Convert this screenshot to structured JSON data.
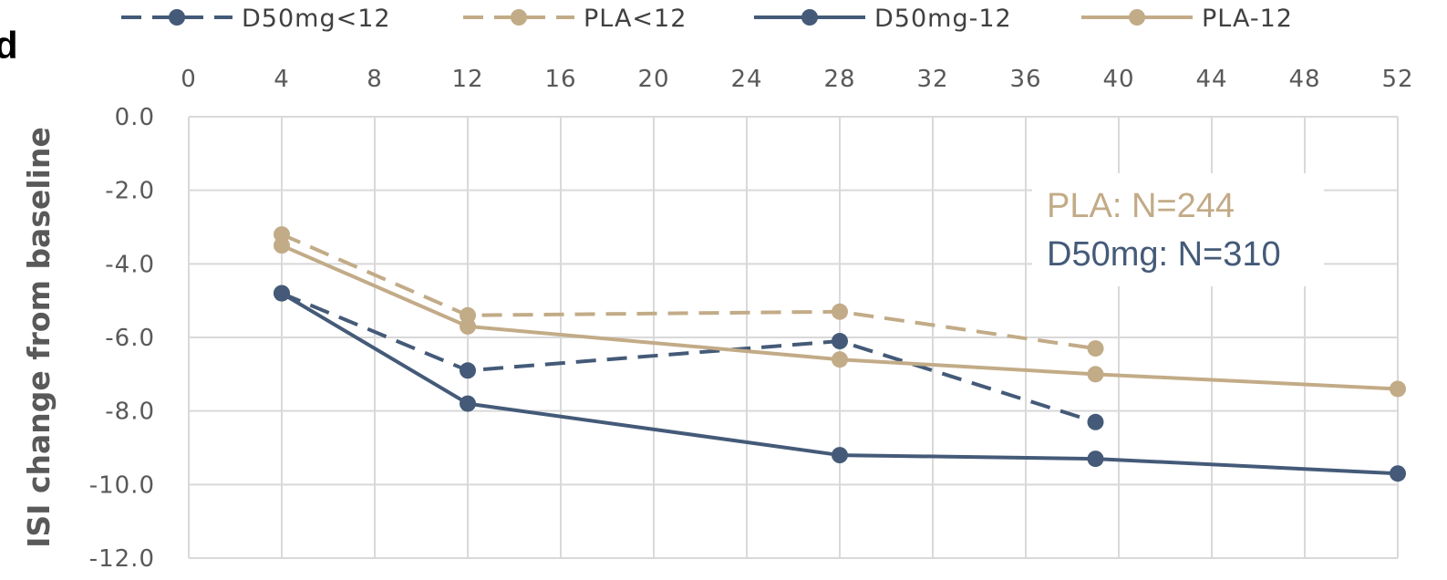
{
  "panel_letter": "d",
  "annotations": [
    {
      "text": "PLA: N=244",
      "color": "#c2ab87"
    },
    {
      "text": "D50mg: N=310",
      "color": "#445a78"
    }
  ],
  "colors": {
    "d50": "#445a78",
    "pla": "#c2ab87",
    "grid": "#d9d9d9"
  },
  "chart_data": {
    "type": "line",
    "title": "",
    "xlabel": "",
    "ylabel": "ISI change from baseline",
    "x_ticks": [
      0,
      4,
      8,
      12,
      16,
      20,
      24,
      28,
      32,
      36,
      40,
      44,
      48,
      52
    ],
    "x_tick_labels": [
      "0",
      "4",
      "8",
      "12",
      "16",
      "20",
      "24",
      "28",
      "32",
      "36",
      "40",
      "44",
      "48",
      "52"
    ],
    "xlim": [
      0,
      52
    ],
    "x_axis_position": "top",
    "y_ticks": [
      0,
      -2,
      -4,
      -6,
      -8,
      -10,
      -12
    ],
    "y_tick_labels": [
      "0.0",
      "-2.0",
      "-4.0",
      "-6.0",
      "-8.0",
      "-10.0",
      "-12.0"
    ],
    "ylim": [
      -12,
      0
    ],
    "grid": true,
    "legend_position": "top",
    "series": [
      {
        "name": "D50mg<12",
        "color": "#445a78",
        "dash": true,
        "x": [
          4,
          12,
          28,
          39
        ],
        "y": [
          -4.8,
          -6.9,
          -6.1,
          -8.3
        ]
      },
      {
        "name": "PLA<12",
        "color": "#c2ab87",
        "dash": true,
        "x": [
          4,
          12,
          28,
          39
        ],
        "y": [
          -3.2,
          -5.4,
          -5.3,
          -6.3
        ]
      },
      {
        "name": "D50mg-12",
        "color": "#445a78",
        "dash": false,
        "x": [
          4,
          12,
          28,
          39,
          52
        ],
        "y": [
          -4.8,
          -7.8,
          -9.2,
          -9.3,
          -9.7
        ]
      },
      {
        "name": "PLA-12",
        "color": "#c2ab87",
        "dash": false,
        "x": [
          4,
          12,
          28,
          39,
          52
        ],
        "y": [
          -3.5,
          -5.7,
          -6.6,
          -7.0,
          -7.4
        ]
      }
    ]
  }
}
